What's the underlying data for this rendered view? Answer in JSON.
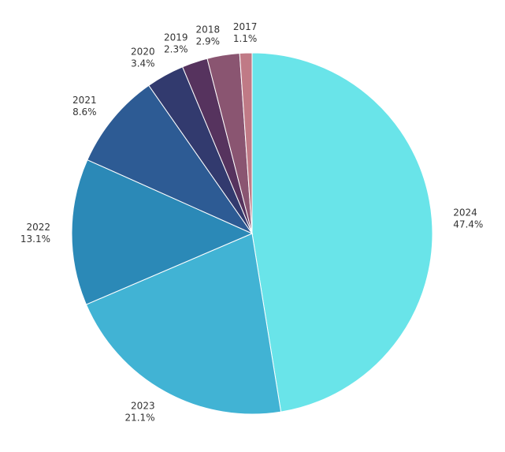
{
  "chart_data": {
    "type": "pie",
    "title": "",
    "start_angle_deg": 0,
    "direction": "clockwise",
    "slices": [
      {
        "label": "2024",
        "value": 47.4,
        "value_label": "47.4%",
        "color": "#69E4E9"
      },
      {
        "label": "2023",
        "value": 21.1,
        "value_label": "21.1%",
        "color": "#41B3D4"
      },
      {
        "label": "2022",
        "value": 13.1,
        "value_label": "13.1%",
        "color": "#2B89B7"
      },
      {
        "label": "2021",
        "value": 8.6,
        "value_label": "8.6%",
        "color": "#2D5B94"
      },
      {
        "label": "2020",
        "value": 3.4,
        "value_label": "3.4%",
        "color": "#323A6E"
      },
      {
        "label": "2019",
        "value": 2.3,
        "value_label": "2.3%",
        "color": "#56335E"
      },
      {
        "label": "2018",
        "value": 2.9,
        "value_label": "2.9%",
        "color": "#8A5571"
      },
      {
        "label": "2017",
        "value": 1.1,
        "value_label": "1.1%",
        "color": "#C07A86"
      }
    ]
  }
}
